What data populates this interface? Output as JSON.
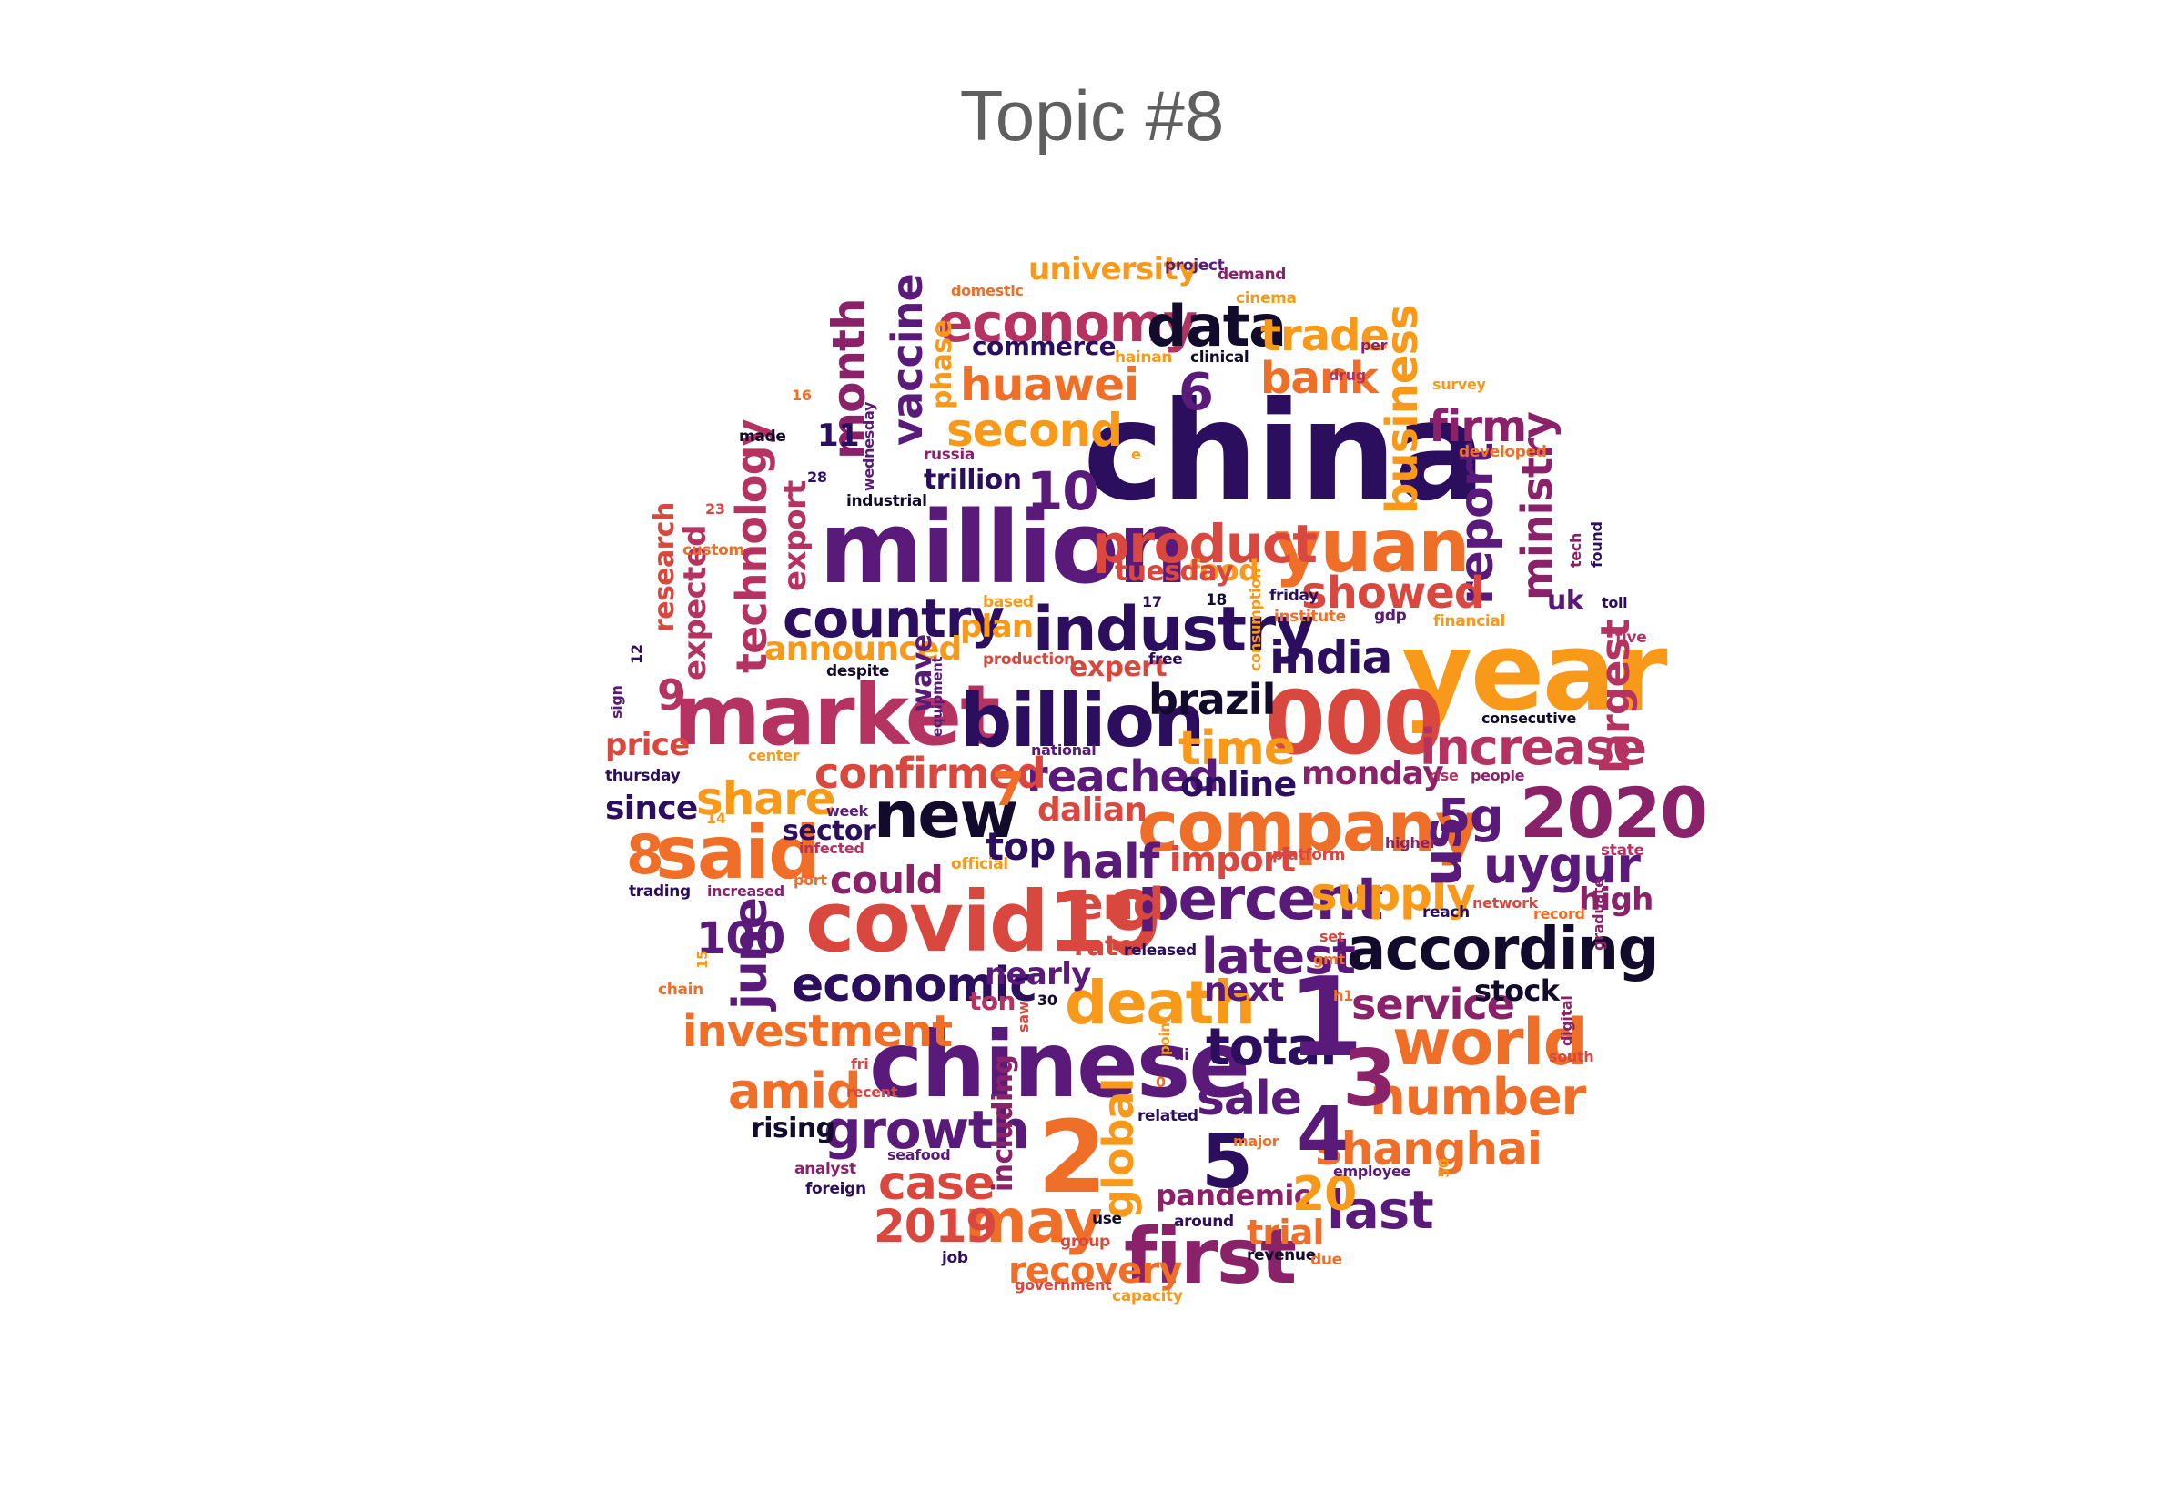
{
  "title": "Topic #8",
  "palette": {
    "black": "#120b2c",
    "indigo": "#2b0f5e",
    "purple": "#5a1a7a",
    "plum": "#8a226a",
    "magenta": "#b53361",
    "red": "#d9483f",
    "orange": "#ef6e28",
    "amber": "#f8991a"
  },
  "words": [
    {
      "text": "china",
      "color": "#2b0f5e"
    },
    {
      "text": "year",
      "color": "#f8991a"
    },
    {
      "text": "million",
      "color": "#5a1a7a"
    },
    {
      "text": "chinese",
      "color": "#5a1a7a"
    },
    {
      "text": "market",
      "color": "#b53361"
    },
    {
      "text": "covid19",
      "color": "#d9483f"
    },
    {
      "text": "company",
      "color": "#ef6e28"
    },
    {
      "text": "000",
      "color": "#d9483f"
    },
    {
      "text": "said",
      "color": "#ef6e28"
    },
    {
      "text": "billion",
      "color": "#2b0f5e"
    },
    {
      "text": "industry",
      "color": "#2b0f5e"
    },
    {
      "text": "yuan",
      "color": "#ef6e28"
    },
    {
      "text": "new",
      "color": "#120b2c"
    },
    {
      "text": "according",
      "color": "#120b2c"
    },
    {
      "text": "first",
      "color": "#8a226a"
    },
    {
      "text": "2020",
      "color": "#8a226a"
    },
    {
      "text": "percent",
      "color": "#5a1a7a"
    },
    {
      "text": "economy",
      "color": "#b53361"
    },
    {
      "text": "product",
      "color": "#d9483f"
    },
    {
      "text": "data",
      "color": "#120b2c"
    },
    {
      "text": "country",
      "color": "#2b0f5e"
    },
    {
      "text": "world",
      "color": "#ef6e28"
    },
    {
      "text": "death",
      "color": "#f8991a"
    },
    {
      "text": "growth",
      "color": "#5a1a7a"
    },
    {
      "text": "may",
      "color": "#ef6e28"
    },
    {
      "text": "economic",
      "color": "#2b0f5e"
    },
    {
      "text": "technology",
      "color": "#b53361"
    },
    {
      "text": "vaccine",
      "color": "#5a1a7a"
    },
    {
      "text": "month",
      "color": "#8a226a"
    },
    {
      "text": "business",
      "color": "#f8991a"
    },
    {
      "text": "report",
      "color": "#5a1a7a"
    },
    {
      "text": "ministry",
      "color": "#8a226a"
    },
    {
      "text": "increase",
      "color": "#b53361"
    },
    {
      "text": "largest",
      "color": "#b53361"
    },
    {
      "text": "latest",
      "color": "#5a1a7a"
    },
    {
      "text": "number",
      "color": "#ef6e28"
    },
    {
      "text": "shanghai",
      "color": "#ef6e28"
    },
    {
      "text": "investment",
      "color": "#ef6e28"
    },
    {
      "text": "huawei",
      "color": "#ef6e28"
    },
    {
      "text": "second",
      "color": "#f8991a"
    },
    {
      "text": "trade",
      "color": "#f8991a"
    },
    {
      "text": "bank",
      "color": "#ef6e28"
    },
    {
      "text": "firm",
      "color": "#8a226a"
    },
    {
      "text": "showed",
      "color": "#d9483f"
    },
    {
      "text": "india",
      "color": "#2b0f5e"
    },
    {
      "text": "brazil",
      "color": "#120b2c"
    },
    {
      "text": "time",
      "color": "#f8991a"
    },
    {
      "text": "reached",
      "color": "#5a1a7a"
    },
    {
      "text": "confirmed",
      "color": "#d9483f"
    },
    {
      "text": "share",
      "color": "#f8991a"
    },
    {
      "text": "half",
      "color": "#5a1a7a"
    },
    {
      "text": "supply",
      "color": "#f8991a"
    },
    {
      "text": "uygur",
      "color": "#5a1a7a"
    },
    {
      "text": "service",
      "color": "#8a226a"
    },
    {
      "text": "total",
      "color": "#2b0f5e"
    },
    {
      "text": "sale",
      "color": "#5a1a7a"
    },
    {
      "text": "amid",
      "color": "#ef6e28"
    },
    {
      "text": "case",
      "color": "#d9483f"
    },
    {
      "text": "global",
      "color": "#f8991a"
    },
    {
      "text": "recovery",
      "color": "#ef6e28"
    },
    {
      "text": "last",
      "color": "#5a1a7a"
    },
    {
      "text": "end",
      "color": "#d9483f"
    },
    {
      "text": "could",
      "color": "#8a226a"
    },
    {
      "text": "top",
      "color": "#2b0f5e"
    },
    {
      "text": "june",
      "color": "#5a1a7a"
    },
    {
      "text": "2019",
      "color": "#d9483f"
    },
    {
      "text": "pandemic",
      "color": "#8a226a"
    },
    {
      "text": "trial",
      "color": "#ef6e28"
    },
    {
      "text": "hit",
      "color": "#5a1a7a"
    },
    {
      "text": "next",
      "color": "#5a1a7a"
    },
    {
      "text": "nearly",
      "color": "#5a1a7a"
    },
    {
      "text": "stock",
      "color": "#120b2c"
    },
    {
      "text": "high",
      "color": "#8a226a"
    },
    {
      "text": "5g",
      "color": "#5a1a7a"
    },
    {
      "text": "us",
      "color": "#5a1a7a"
    },
    {
      "text": "monday",
      "color": "#8a226a"
    },
    {
      "text": "online",
      "color": "#2b0f5e"
    },
    {
      "text": "import",
      "color": "#d9483f"
    },
    {
      "text": "dalian",
      "color": "#d9483f"
    },
    {
      "text": "announced",
      "color": "#f8991a"
    },
    {
      "text": "expected",
      "color": "#b53361"
    },
    {
      "text": "research",
      "color": "#d9483f"
    },
    {
      "text": "export",
      "color": "#b53361"
    },
    {
      "text": "price",
      "color": "#d9483f"
    },
    {
      "text": "since",
      "color": "#2b0f5e"
    },
    {
      "text": "sector",
      "color": "#2b0f5e"
    },
    {
      "text": "plan",
      "color": "#f8991a"
    },
    {
      "text": "food",
      "color": "#f8991a"
    },
    {
      "text": "tuesday",
      "color": "#d9483f"
    },
    {
      "text": "expert",
      "color": "#d9483f"
    },
    {
      "text": "rising",
      "color": "#120b2c"
    },
    {
      "text": "rate",
      "color": "#d9483f"
    },
    {
      "text": "ton",
      "color": "#b53361"
    },
    {
      "text": "commerce",
      "color": "#2b0f5e"
    },
    {
      "text": "university",
      "color": "#f8991a"
    },
    {
      "text": "phase",
      "color": "#f8991a"
    },
    {
      "text": "trillion",
      "color": "#2b0f5e"
    },
    {
      "text": "including",
      "color": "#8a226a"
    },
    {
      "text": "wave",
      "color": "#5a1a7a"
    },
    {
      "text": "uk",
      "color": "#5a1a7a"
    },
    {
      "text": "10",
      "color": "#5a1a7a"
    },
    {
      "text": "100",
      "color": "#5a1a7a"
    },
    {
      "text": "20",
      "color": "#f8991a"
    },
    {
      "text": "1",
      "color": "#5a1a7a"
    },
    {
      "text": "2",
      "color": "#ef6e28"
    },
    {
      "text": "3",
      "color": "#8a226a"
    },
    {
      "text": "4",
      "color": "#5a1a7a"
    },
    {
      "text": "5",
      "color": "#2b0f5e"
    },
    {
      "text": "6",
      "color": "#5a1a7a"
    },
    {
      "text": "7",
      "color": "#ef6e28"
    },
    {
      "text": "8",
      "color": "#ef6e28"
    },
    {
      "text": "9",
      "color": "#b53361"
    },
    {
      "text": "11",
      "color": "#2b0f5e"
    },
    {
      "text": "domestic",
      "color": "#ef6e28"
    },
    {
      "text": "project",
      "color": "#5a1a7a"
    },
    {
      "text": "demand",
      "color": "#8a226a"
    },
    {
      "text": "cinema",
      "color": "#f8991a"
    },
    {
      "text": "hainan",
      "color": "#f8991a"
    },
    {
      "text": "clinical",
      "color": "#120b2c"
    },
    {
      "text": "drug",
      "color": "#b53361"
    },
    {
      "text": "per",
      "color": "#8a226a"
    },
    {
      "text": "survey",
      "color": "#f8991a"
    },
    {
      "text": "developed",
      "color": "#ef6e28"
    },
    {
      "text": "russia",
      "color": "#8a226a"
    },
    {
      "text": "e",
      "color": "#f8991a"
    },
    {
      "text": "made",
      "color": "#120b2c"
    },
    {
      "text": "wednesday",
      "color": "#5a1a7a"
    },
    {
      "text": "28",
      "color": "#2b0f5e"
    },
    {
      "text": "16",
      "color": "#ef6e28"
    },
    {
      "text": "23",
      "color": "#d9483f"
    },
    {
      "text": "industrial",
      "color": "#120b2c"
    },
    {
      "text": "custom",
      "color": "#ef6e28"
    },
    {
      "text": "based",
      "color": "#f8991a"
    },
    {
      "text": "17",
      "color": "#2b0f5e"
    },
    {
      "text": "18",
      "color": "#120b2c"
    },
    {
      "text": "friday",
      "color": "#2b0f5e"
    },
    {
      "text": "institute",
      "color": "#ef6e28"
    },
    {
      "text": "gdp",
      "color": "#5a1a7a"
    },
    {
      "text": "financial",
      "color": "#f8991a"
    },
    {
      "text": "tech",
      "color": "#8a226a"
    },
    {
      "text": "found",
      "color": "#2b0f5e"
    },
    {
      "text": "toll",
      "color": "#2b0f5e"
    },
    {
      "text": "five",
      "color": "#b53361"
    },
    {
      "text": "12",
      "color": "#2b0f5e"
    },
    {
      "text": "production",
      "color": "#d9483f"
    },
    {
      "text": "free",
      "color": "#2b0f5e"
    },
    {
      "text": "consumption",
      "color": "#f8991a"
    },
    {
      "text": "despite",
      "color": "#120b2c"
    },
    {
      "text": "equipment",
      "color": "#5a1a7a"
    },
    {
      "text": "consecutive",
      "color": "#120b2c"
    },
    {
      "text": "sign",
      "color": "#5a1a7a"
    },
    {
      "text": "center",
      "color": "#f8991a"
    },
    {
      "text": "national",
      "color": "#5a1a7a"
    },
    {
      "text": "rise",
      "color": "#b53361"
    },
    {
      "text": "people",
      "color": "#8a226a"
    },
    {
      "text": "thursday",
      "color": "#2b0f5e"
    },
    {
      "text": "14",
      "color": "#f8991a"
    },
    {
      "text": "week",
      "color": "#5a1a7a"
    },
    {
      "text": "infected",
      "color": "#b53361"
    },
    {
      "text": "higher",
      "color": "#8a226a"
    },
    {
      "text": "state",
      "color": "#b53361"
    },
    {
      "text": "platform",
      "color": "#d9483f"
    },
    {
      "text": "official",
      "color": "#f8991a"
    },
    {
      "text": "port",
      "color": "#ef6e28"
    },
    {
      "text": "increased",
      "color": "#8a226a"
    },
    {
      "text": "trading",
      "color": "#2b0f5e"
    },
    {
      "text": "network",
      "color": "#d9483f"
    },
    {
      "text": "reach",
      "color": "#2b0f5e"
    },
    {
      "text": "record",
      "color": "#ef6e28"
    },
    {
      "text": "graduate",
      "color": "#8a226a"
    },
    {
      "text": "set",
      "color": "#d9483f"
    },
    {
      "text": "gmt",
      "color": "#ef6e28"
    },
    {
      "text": "released",
      "color": "#2b0f5e"
    },
    {
      "text": "15",
      "color": "#f8991a"
    },
    {
      "text": "chain",
      "color": "#ef6e28"
    },
    {
      "text": "saw",
      "color": "#d9483f"
    },
    {
      "text": "30",
      "color": "#120b2c"
    },
    {
      "text": "h1",
      "color": "#ef6e28"
    },
    {
      "text": "digital",
      "color": "#8a226a"
    },
    {
      "text": "south",
      "color": "#d9483f"
    },
    {
      "text": "fri",
      "color": "#d9483f"
    },
    {
      "text": "point",
      "color": "#f8991a"
    },
    {
      "text": "ai",
      "color": "#5a1a7a"
    },
    {
      "text": "recent",
      "color": "#d9483f"
    },
    {
      "text": "0",
      "color": "#ef6e28"
    },
    {
      "text": "related",
      "color": "#2b0f5e"
    },
    {
      "text": "major",
      "color": "#ef6e28"
    },
    {
      "text": "employee",
      "color": "#5a1a7a"
    },
    {
      "text": "50",
      "color": "#f8991a"
    },
    {
      "text": "seafood",
      "color": "#5a1a7a"
    },
    {
      "text": "analyst",
      "color": "#8a226a"
    },
    {
      "text": "foreign",
      "color": "#2b0f5e"
    },
    {
      "text": "use",
      "color": "#120b2c"
    },
    {
      "text": "around",
      "color": "#2b0f5e"
    },
    {
      "text": "revenue",
      "color": "#120b2c"
    },
    {
      "text": "group",
      "color": "#d9483f"
    },
    {
      "text": "job",
      "color": "#2b0f5e"
    },
    {
      "text": "government",
      "color": "#d9483f"
    },
    {
      "text": "capacity",
      "color": "#f8991a"
    },
    {
      "text": "due",
      "color": "#ef6e28"
    }
  ]
}
